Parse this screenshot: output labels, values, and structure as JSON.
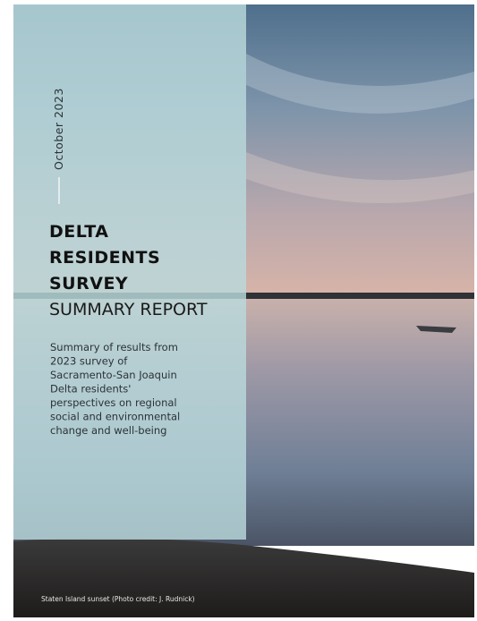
{
  "cover": {
    "date": "October 2023",
    "title": [
      "DELTA",
      "RESIDENTS",
      "SURVEY"
    ],
    "subtitle": "SUMMARY REPORT",
    "description": [
      "Summary of results from",
      "2023 survey of",
      "Sacramento-San Joaquin",
      "Delta residents'",
      "perspectives on regional",
      "social and environmental",
      "change and well-being"
    ],
    "caption": "Staten Island sunset (Photo credit: J. Rudnick)"
  }
}
